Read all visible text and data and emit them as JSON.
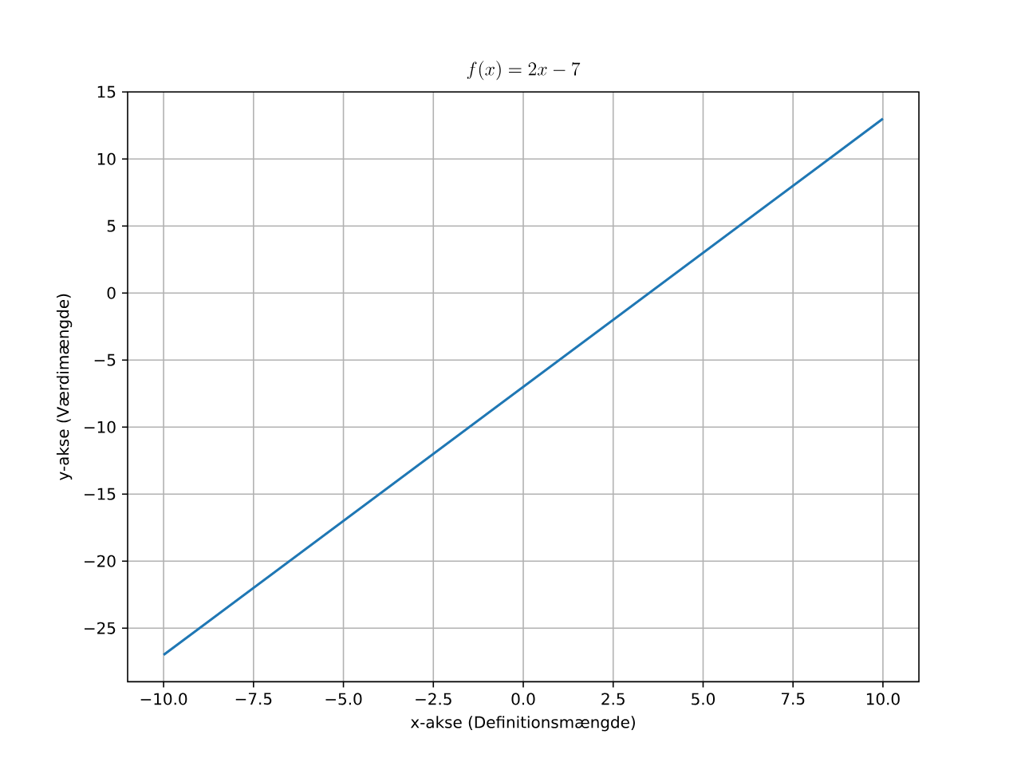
{
  "chart_data": {
    "type": "line",
    "title": "f(x) = 2x - 7",
    "xlabel": "x-akse (Definitionsmængde)",
    "ylabel": "y-akse (Værdimængde)",
    "x": [
      -10,
      10
    ],
    "series": [
      {
        "color": "#1f77b4",
        "values": [
          -27,
          13
        ]
      }
    ],
    "xlim": [
      -11,
      11
    ],
    "ylim": [
      -29,
      15
    ],
    "xticks": [
      {
        "value": -10,
        "label": "−10.0"
      },
      {
        "value": -7.5,
        "label": "−7.5"
      },
      {
        "value": -5,
        "label": "−5.0"
      },
      {
        "value": -2.5,
        "label": "−2.5"
      },
      {
        "value": 0,
        "label": "0.0"
      },
      {
        "value": 2.5,
        "label": "2.5"
      },
      {
        "value": 5,
        "label": "5.0"
      },
      {
        "value": 7.5,
        "label": "7.5"
      },
      {
        "value": 10,
        "label": "10.0"
      }
    ],
    "yticks": [
      {
        "value": -25,
        "label": "−25"
      },
      {
        "value": -20,
        "label": "−20"
      },
      {
        "value": -15,
        "label": "−15"
      },
      {
        "value": -10,
        "label": "−10"
      },
      {
        "value": -5,
        "label": "−5"
      },
      0,
      5,
      10,
      15
    ],
    "grid": true
  }
}
